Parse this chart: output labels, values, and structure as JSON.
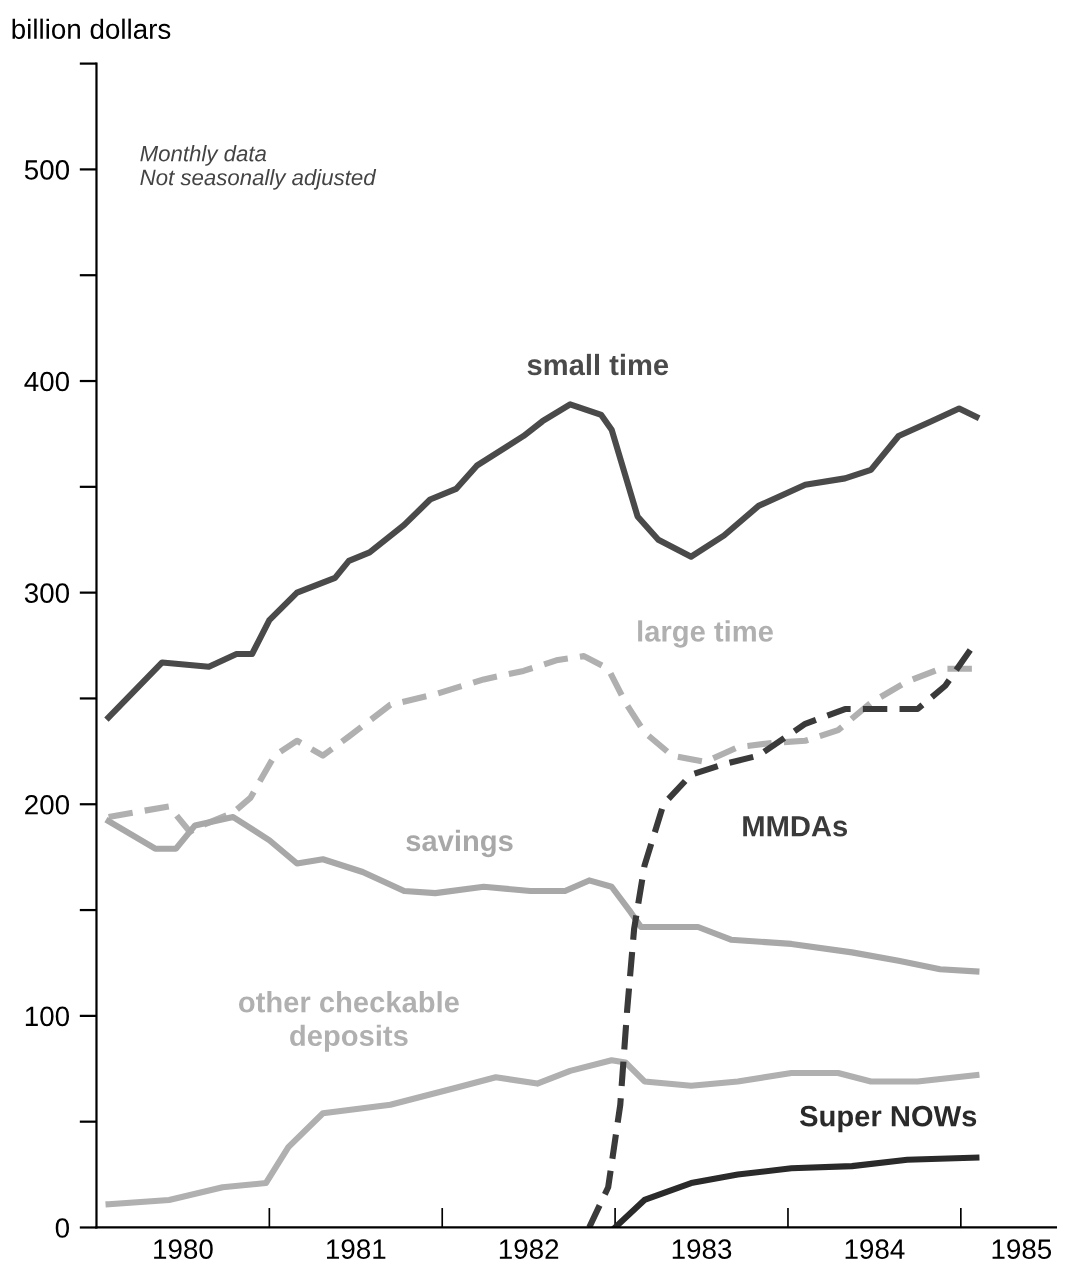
{
  "chart_data": {
    "type": "line",
    "ylabel": "billion dollars",
    "annotations": [
      "Monthly data\nNot seasonally adjusted"
    ],
    "xlim": [
      1980,
      1985.55
    ],
    "ylim": [
      0,
      550
    ],
    "xticks": [
      {
        "value": 1980.5,
        "label": "1980"
      },
      {
        "value": 1981,
        "label": null
      },
      {
        "value": 1981.5,
        "label": "1981"
      },
      {
        "value": 1982,
        "label": null
      },
      {
        "value": 1982.5,
        "label": "1982"
      },
      {
        "value": 1983,
        "label": null
      },
      {
        "value": 1983.5,
        "label": "1983"
      },
      {
        "value": 1984,
        "label": null
      },
      {
        "value": 1984.5,
        "label": "1984"
      },
      {
        "value": 1985,
        "label": null
      },
      {
        "value": 1985.35,
        "label": "1985"
      }
    ],
    "yticks": [
      0,
      {
        "value": 50,
        "label": null
      },
      100,
      {
        "value": 150,
        "label": null
      },
      200,
      {
        "value": 250,
        "label": null
      },
      300,
      {
        "value": 350,
        "label": null
      },
      400,
      {
        "value": 450,
        "label": null
      },
      500,
      {
        "value": 550,
        "label": null
      }
    ],
    "grid": false,
    "legend": false,
    "marker": "none",
    "series": [
      {
        "name": "small time",
        "color": "#4a4a4a",
        "line_style": "solid",
        "x": [
          1980.07,
          1980.38,
          1980.65,
          1980.81,
          1980.9,
          1981.0,
          1981.16,
          1981.38,
          1981.46,
          1981.58,
          1981.78,
          1981.93,
          1982.08,
          1982.2,
          1982.47,
          1982.58,
          1982.74,
          1982.92,
          1982.98,
          1983.13,
          1983.25,
          1983.44,
          1983.63,
          1983.83,
          1984.1,
          1984.33,
          1984.48,
          1984.64,
          1984.83,
          1984.99,
          1985.09
        ],
        "values": [
          241,
          267,
          265,
          271,
          271,
          287,
          300,
          307,
          315,
          319,
          332,
          344,
          349,
          360,
          374,
          381,
          389,
          384,
          377,
          336,
          325,
          317,
          327,
          341,
          351,
          354,
          358,
          374,
          381,
          387,
          383
        ]
      },
      {
        "name": "large time",
        "color": "#b0b0b0",
        "line_style": "dashed",
        "x": [
          1980.07,
          1980.42,
          1980.54,
          1980.61,
          1980.79,
          1980.89,
          1981.03,
          1981.16,
          1981.31,
          1981.46,
          1981.7,
          1981.96,
          1982.24,
          1982.47,
          1982.66,
          1982.82,
          1982.96,
          1983.06,
          1983.17,
          1983.33,
          1983.52,
          1983.71,
          1983.91,
          1984.1,
          1984.29,
          1984.48,
          1984.69,
          1984.88,
          1985.09
        ],
        "values": [
          194,
          199,
          187,
          190,
          196,
          203,
          223,
          230,
          223,
          232,
          247,
          252,
          259,
          263,
          268,
          270,
          264,
          248,
          234,
          223,
          220,
          227,
          229,
          230,
          235,
          248,
          258,
          264,
          264
        ]
      },
      {
        "name": "savings",
        "color": "#a8a8a8",
        "line_style": "solid",
        "x": [
          1980.07,
          1980.34,
          1980.46,
          1980.57,
          1980.79,
          1981.0,
          1981.16,
          1981.31,
          1981.54,
          1981.78,
          1981.96,
          1982.24,
          1982.51,
          1982.71,
          1982.85,
          1982.98,
          1983.09,
          1983.15,
          1983.48,
          1983.67,
          1984.02,
          1984.37,
          1984.64,
          1984.88,
          1985.09
        ],
        "values": [
          192,
          179,
          179,
          190,
          194,
          183,
          172,
          174,
          168,
          159,
          158,
          161,
          159,
          159,
          164,
          161,
          149,
          142,
          142,
          136,
          134,
          130,
          126,
          122,
          121
        ]
      },
      {
        "name": "other checkable\ndeposits",
        "color": "#b0b0b0",
        "line_style": "solid",
        "x": [
          1980.07,
          1980.42,
          1980.73,
          1980.98,
          1981.11,
          1981.31,
          1981.7,
          1982.08,
          1982.31,
          1982.55,
          1982.74,
          1982.98,
          1983.06,
          1983.17,
          1983.44,
          1983.71,
          1984.02,
          1984.29,
          1984.48,
          1984.75,
          1985.09
        ],
        "values": [
          11,
          13,
          19,
          21,
          38,
          54,
          58,
          66,
          71,
          68,
          74,
          79,
          78,
          69,
          67,
          69,
          73,
          73,
          69,
          69,
          72
        ]
      },
      {
        "name": "MMDAs",
        "color": "#3a3a3a",
        "line_style": "dashed",
        "x": [
          1982.85,
          1982.96,
          1983.03,
          1983.07,
          1983.11,
          1983.17,
          1983.28,
          1983.44,
          1983.63,
          1983.83,
          1984.1,
          1984.33,
          1984.48,
          1984.75,
          1984.91,
          1985.09
        ],
        "values": [
          0,
          19,
          58,
          103,
          141,
          171,
          200,
          214,
          219,
          223,
          238,
          245,
          245,
          245,
          256,
          277
        ]
      },
      {
        "name": "Super NOWs",
        "color": "#2a2a2a",
        "line_style": "solid",
        "x": [
          1983.0,
          1983.17,
          1983.44,
          1983.71,
          1984.02,
          1984.37,
          1984.69,
          1985.09
        ],
        "values": [
          0,
          13,
          21,
          25,
          28,
          29,
          32,
          33
        ]
      }
    ]
  }
}
